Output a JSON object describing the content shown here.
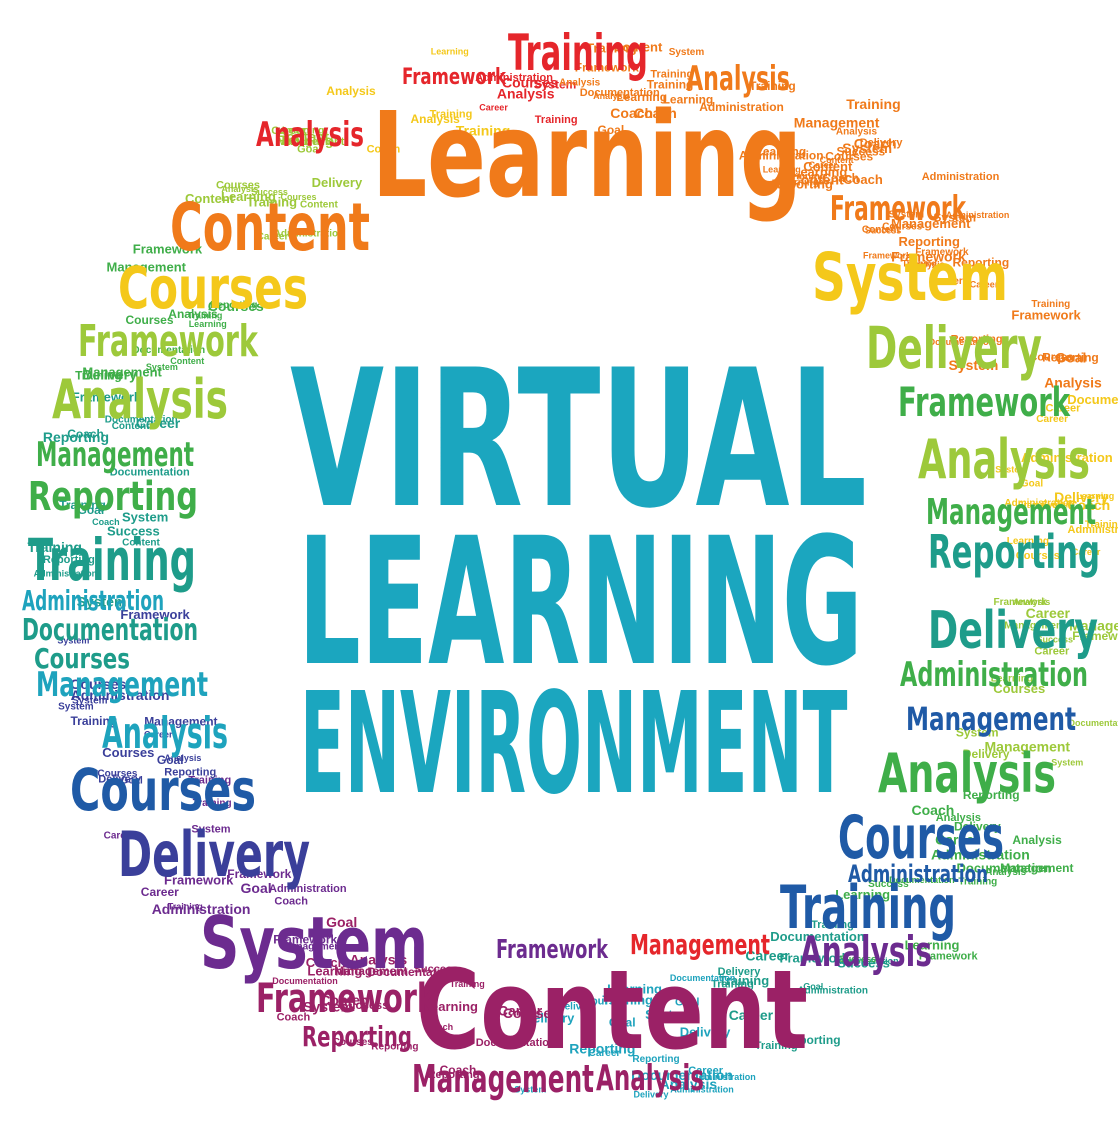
{
  "title_lines": [
    "VIRTUAL",
    "LEARNING",
    "ENVIRONMENT"
  ],
  "title_color": "#1ba6bf",
  "palette": {
    "red": "#e5262b",
    "orange": "#f07a1a",
    "yellow": "#f4c81a",
    "lime": "#9dc93a",
    "green": "#3fae49",
    "teal": "#1e9c8a",
    "cyan": "#1ea3bd",
    "blue": "#1f5aa6",
    "indigo": "#3a3f9a",
    "purple": "#6c2b8f",
    "magenta": "#9b2166"
  },
  "big_words": [
    {
      "text": "Learning",
      "color": "orange"
    },
    {
      "text": "Training",
      "color": "red"
    },
    {
      "text": "Content",
      "color": "orange"
    },
    {
      "text": "Courses",
      "color": "yellow"
    },
    {
      "text": "System",
      "color": "yellow"
    },
    {
      "text": "Framework",
      "color": "lime"
    },
    {
      "text": "Delivery",
      "color": "lime"
    },
    {
      "text": "Analysis",
      "color": "lime"
    },
    {
      "text": "Analysis",
      "color": "lime"
    },
    {
      "text": "Management",
      "color": "green"
    },
    {
      "text": "Management",
      "color": "green"
    },
    {
      "text": "Reporting",
      "color": "green"
    },
    {
      "text": "Reporting",
      "color": "teal"
    },
    {
      "text": "Training",
      "color": "teal"
    },
    {
      "text": "Delivery",
      "color": "teal"
    },
    {
      "text": "Administration",
      "color": "cyan"
    },
    {
      "text": "Documentation",
      "color": "teal"
    },
    {
      "text": "Management",
      "color": "cyan"
    },
    {
      "text": "Analysis",
      "color": "cyan"
    },
    {
      "text": "Courses",
      "color": "blue"
    },
    {
      "text": "Courses",
      "color": "blue"
    },
    {
      "text": "Delivery",
      "color": "indigo"
    },
    {
      "text": "Training",
      "color": "blue"
    },
    {
      "text": "System",
      "color": "purple"
    },
    {
      "text": "Content",
      "color": "magenta"
    },
    {
      "text": "Framework",
      "color": "magenta"
    },
    {
      "text": "Management",
      "color": "magenta"
    },
    {
      "text": "Analysis",
      "color": "magenta"
    },
    {
      "text": "Analysis",
      "color": "purple"
    },
    {
      "text": "Framework",
      "color": "purple"
    },
    {
      "text": "Analysis",
      "color": "red"
    },
    {
      "text": "Analysis",
      "color": "orange"
    },
    {
      "text": "Framework",
      "color": "red"
    },
    {
      "text": "Framework",
      "color": "orange"
    },
    {
      "text": "Administration",
      "color": "green"
    },
    {
      "text": "Management",
      "color": "blue"
    },
    {
      "text": "Reporting",
      "color": "magenta"
    },
    {
      "text": "Management",
      "color": "red"
    },
    {
      "text": "Analysis",
      "color": "green"
    },
    {
      "text": "Framework",
      "color": "green"
    },
    {
      "text": "Courses",
      "color": "teal"
    },
    {
      "text": "Administration",
      "color": "blue"
    }
  ],
  "filler_words": [
    "Courses",
    "Career",
    "Learning",
    "Goal",
    "Coach",
    "Success",
    "Content",
    "Training",
    "Reporting",
    "Documentation",
    "Administration",
    "Analysis",
    "Framework",
    "Management",
    "Delivery",
    "System"
  ]
}
